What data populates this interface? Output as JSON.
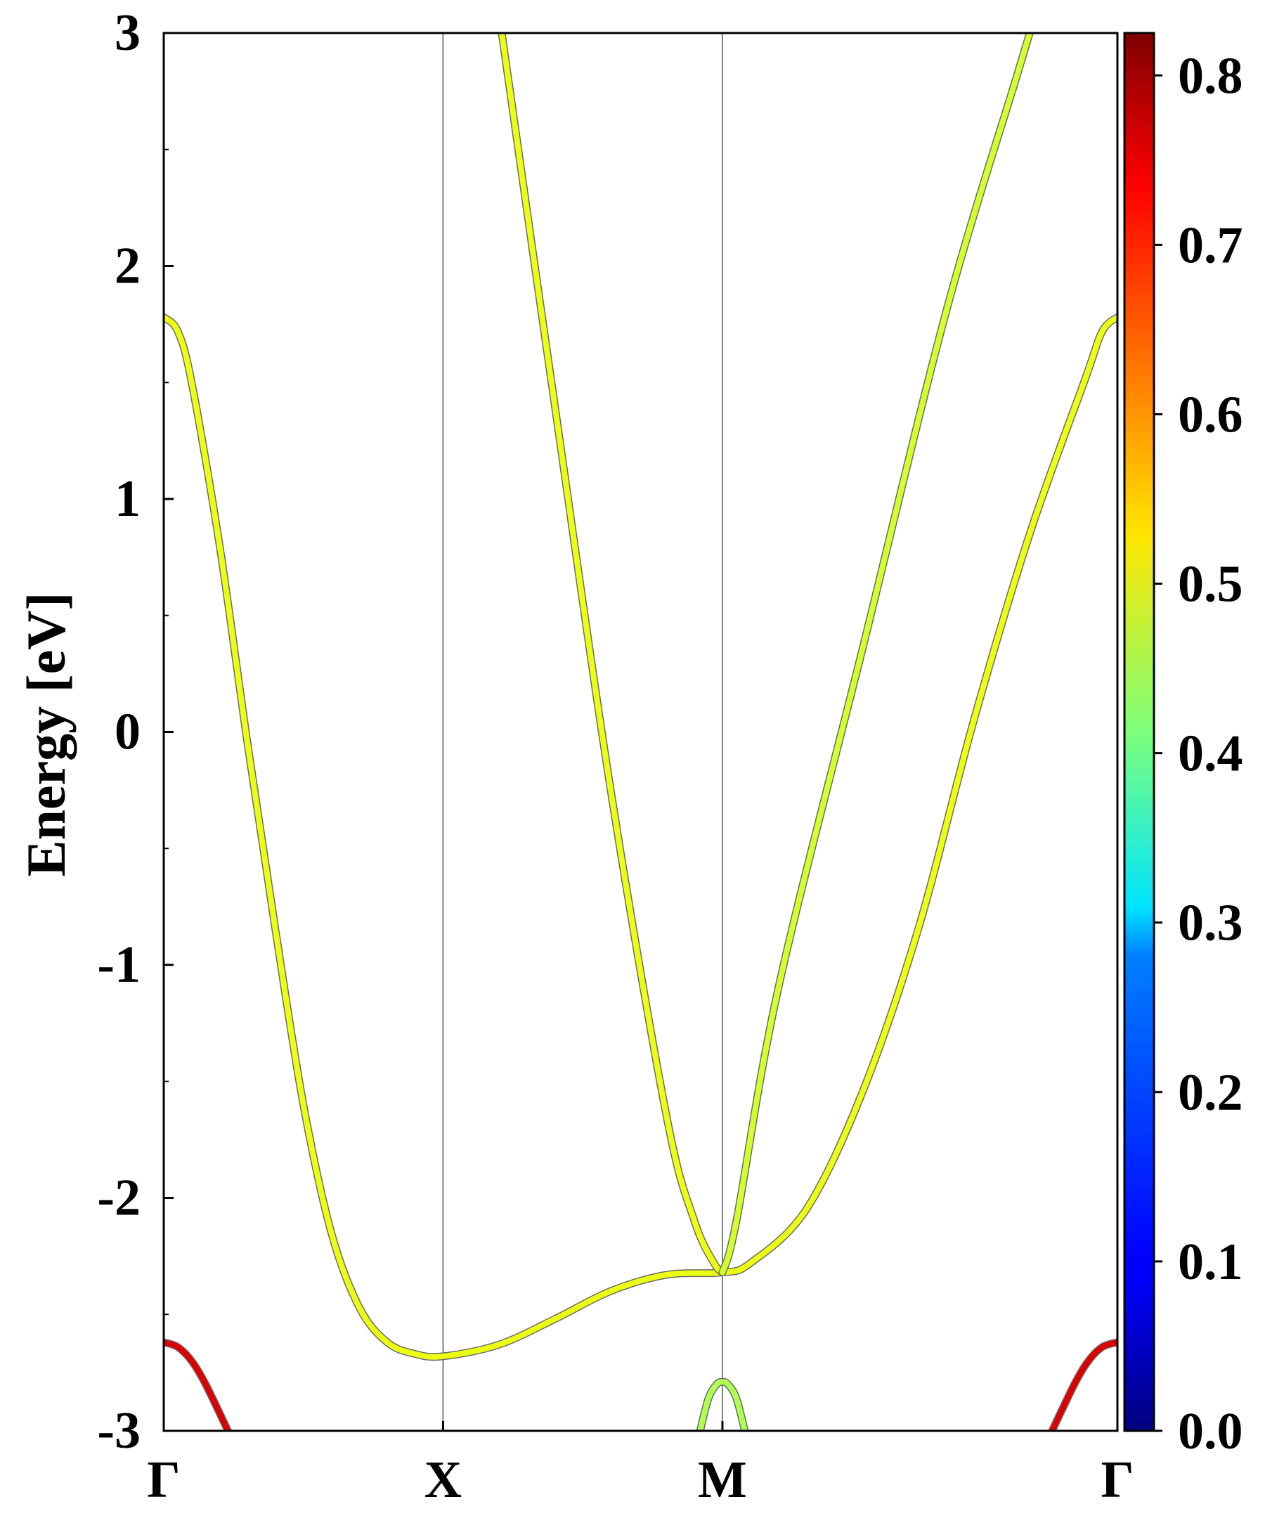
{
  "chart_data": {
    "type": "line",
    "ylabel": "Energy [eV]",
    "xlabel": "",
    "ylim": [
      -3,
      3
    ],
    "yticks": [
      {
        "value": 3,
        "label": "3"
      },
      {
        "value": 2,
        "label": "2"
      },
      {
        "value": 1,
        "label": "1"
      },
      {
        "value": 0,
        "label": "0"
      },
      {
        "value": -1,
        "label": "-1"
      },
      {
        "value": -2,
        "label": "-2"
      },
      {
        "value": -3,
        "label": "-3"
      }
    ],
    "yminor_ticks": [
      2.5,
      1.5,
      0.5,
      -0.5,
      -1.5,
      -2.5
    ],
    "xlim": [
      0,
      3.414
    ],
    "kpoints": [
      {
        "label": "Γ",
        "x": 0
      },
      {
        "label": "X",
        "x": 1.0
      },
      {
        "label": "M",
        "x": 2.0
      },
      {
        "label": "Γ",
        "x": 3.414
      }
    ],
    "colorbar": {
      "range": [
        0.0,
        0.825
      ],
      "colormap": "jet",
      "ticks": [
        {
          "value": 0.0,
          "label": "0.0"
        },
        {
          "value": 0.1,
          "label": "0.1"
        },
        {
          "value": 0.2,
          "label": "0.2"
        },
        {
          "value": 0.3,
          "label": "0.3"
        },
        {
          "value": 0.4,
          "label": "0.4"
        },
        {
          "value": 0.5,
          "label": "0.5"
        },
        {
          "value": 0.6,
          "label": "0.6"
        },
        {
          "value": 0.7,
          "label": "0.7"
        },
        {
          "value": 0.8,
          "label": "0.8"
        }
      ]
    },
    "series": [
      {
        "weight": 0.5,
        "x": [
          0,
          0.05,
          0.1,
          0.2,
          0.3,
          0.4,
          0.5,
          0.6,
          0.7,
          0.8,
          0.9,
          1.0,
          1.2,
          1.4,
          1.6,
          1.8,
          2.0,
          2.1,
          2.3,
          2.5,
          2.7,
          2.9,
          3.1,
          3.3,
          3.36,
          3.414
        ],
        "y": [
          1.78,
          1.72,
          1.5,
          0.8,
          -0.05,
          -0.85,
          -1.6,
          -2.15,
          -2.47,
          -2.62,
          -2.67,
          -2.68,
          -2.63,
          -2.52,
          -2.4,
          -2.33,
          -2.32,
          -2.28,
          -2.05,
          -1.55,
          -0.85,
          0.05,
          0.85,
          1.52,
          1.72,
          1.78
        ]
      },
      {
        "weight": 0.5,
        "x": [
          1.21,
          1.4,
          1.6,
          1.8,
          1.9,
          1.97,
          2.0
        ],
        "y": [
          3.0,
          1.4,
          -0.25,
          -1.65,
          -2.1,
          -2.28,
          -2.32
        ]
      },
      {
        "weight": 0.48,
        "x": [
          2.0,
          2.05,
          2.2,
          2.5,
          2.8,
          3.05,
          3.1
        ],
        "y": [
          -2.32,
          -2.1,
          -1.1,
          0.35,
          1.8,
          2.8,
          3.0
        ]
      },
      {
        "weight": 0.75,
        "x": [
          0,
          0.05,
          0.1,
          0.15,
          0.23
        ],
        "y": [
          -2.62,
          -2.64,
          -2.7,
          -2.8,
          -3.0
        ]
      },
      {
        "weight": 0.75,
        "x": [
          3.18,
          3.26,
          3.31,
          3.36,
          3.414
        ],
        "y": [
          -3.0,
          -2.8,
          -2.7,
          -2.64,
          -2.62
        ]
      },
      {
        "weight": 0.45,
        "x": [
          1.92,
          1.95,
          1.98,
          2.0,
          2.02,
          2.05,
          2.08
        ],
        "y": [
          -3.0,
          -2.86,
          -2.8,
          -2.79,
          -2.8,
          -2.86,
          -3.0
        ]
      }
    ]
  }
}
